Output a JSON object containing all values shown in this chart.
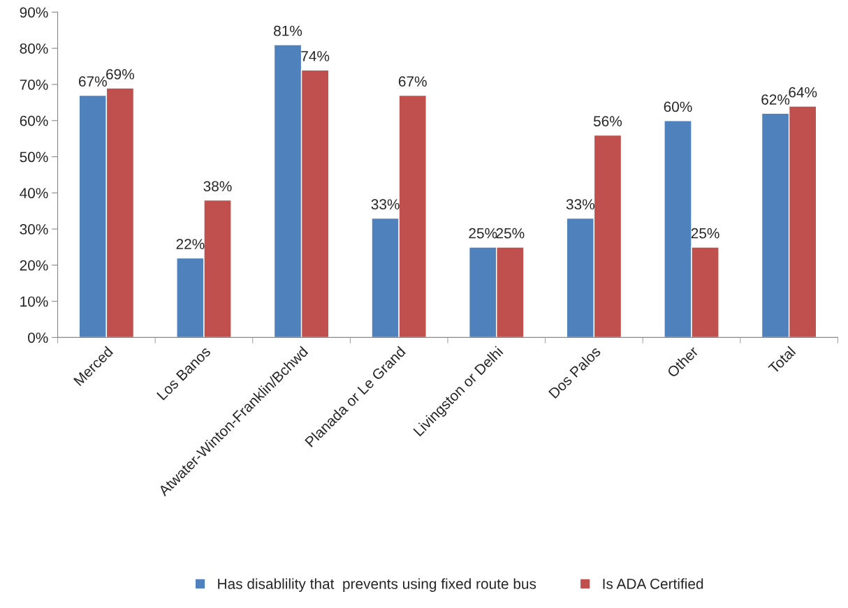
{
  "chart_data": {
    "type": "bar",
    "categories": [
      "Merced",
      "Los Banos",
      "Atwater-Winton-Franklin/Bchwd",
      "Planada or Le Grand",
      "Livingston or Delhi",
      "Dos Palos",
      "Other",
      "Total"
    ],
    "series": [
      {
        "name": "Has disablility that  prevents using fixed route bus",
        "color": "#4f81bd",
        "values": [
          67,
          22,
          81,
          33,
          25,
          33,
          60,
          62
        ],
        "value_labels": [
          "67%",
          "22%",
          "81%",
          "33%",
          "25%",
          "33%",
          "60%",
          "62%"
        ]
      },
      {
        "name": "Is ADA Certified",
        "color": "#c0504d",
        "values": [
          69,
          38,
          74,
          67,
          25,
          56,
          25,
          64
        ],
        "value_labels": [
          "69%",
          "38%",
          "74%",
          "67%",
          "25%",
          "56%",
          "25%",
          "64%"
        ]
      }
    ],
    "ylim": [
      0,
      90
    ],
    "yticks": [
      {
        "value": 0,
        "label": "0%"
      },
      {
        "value": 10,
        "label": "10%"
      },
      {
        "value": 20,
        "label": "20%"
      },
      {
        "value": 30,
        "label": "30%"
      },
      {
        "value": 40,
        "label": "40%"
      },
      {
        "value": 50,
        "label": "50%"
      },
      {
        "value": 60,
        "label": "60%"
      },
      {
        "value": 70,
        "label": "70%"
      },
      {
        "value": 80,
        "label": "80%"
      },
      {
        "value": 90,
        "label": "90%"
      }
    ],
    "grid": false,
    "legend": "bottom"
  }
}
